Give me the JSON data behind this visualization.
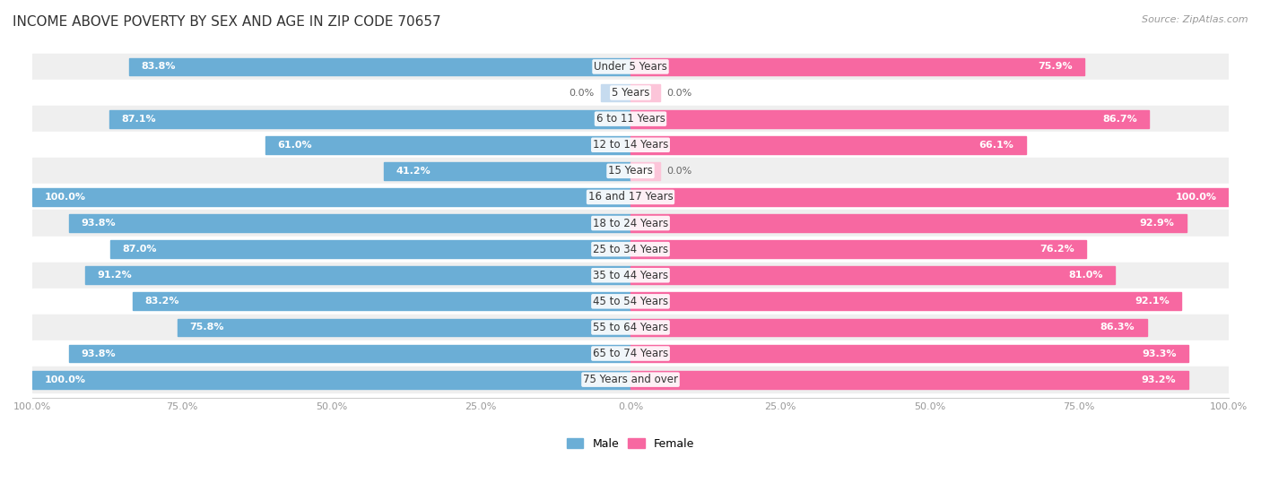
{
  "title": "INCOME ABOVE POVERTY BY SEX AND AGE IN ZIP CODE 70657",
  "source": "Source: ZipAtlas.com",
  "categories": [
    "Under 5 Years",
    "5 Years",
    "6 to 11 Years",
    "12 to 14 Years",
    "15 Years",
    "16 and 17 Years",
    "18 to 24 Years",
    "25 to 34 Years",
    "35 to 44 Years",
    "45 to 54 Years",
    "55 to 64 Years",
    "65 to 74 Years",
    "75 Years and over"
  ],
  "male_values": [
    83.8,
    0.0,
    87.1,
    61.0,
    41.2,
    100.0,
    93.8,
    87.0,
    91.2,
    83.2,
    75.8,
    93.8,
    100.0
  ],
  "female_values": [
    75.9,
    0.0,
    86.7,
    66.1,
    0.0,
    100.0,
    92.9,
    76.2,
    81.0,
    92.1,
    86.3,
    93.3,
    93.2
  ],
  "male_color": "#6baed6",
  "female_color": "#f768a1",
  "male_color_light": "#c6dbef",
  "female_color_light": "#fcc5d9",
  "bar_bg_odd": "#efefef",
  "bar_bg_even": "#ffffff",
  "title_fontsize": 11,
  "source_fontsize": 8,
  "label_fontsize": 8.5,
  "value_fontsize": 8,
  "legend_fontsize": 9,
  "max_val": 100.0
}
